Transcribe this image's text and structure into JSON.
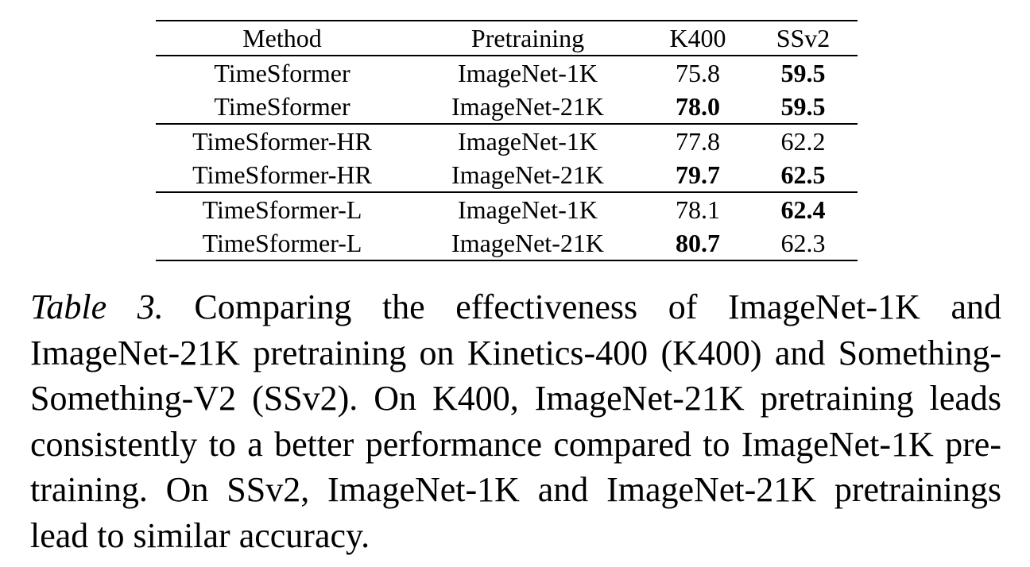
{
  "table": {
    "headers": {
      "method": "Method",
      "pretraining": "Pretraining",
      "k400": "K400",
      "ssv2": "SSv2"
    },
    "rows": [
      {
        "method": "TimeSformer",
        "pretraining": "ImageNet-1K",
        "k400": "75.8",
        "ssv2": "59.5",
        "k400_bold": false,
        "ssv2_bold": true
      },
      {
        "method": "TimeSformer",
        "pretraining": "ImageNet-21K",
        "k400": "78.0",
        "ssv2": "59.5",
        "k400_bold": true,
        "ssv2_bold": true
      },
      {
        "method": "TimeSformer-HR",
        "pretraining": "ImageNet-1K",
        "k400": "77.8",
        "ssv2": "62.2",
        "k400_bold": false,
        "ssv2_bold": false
      },
      {
        "method": "TimeSformer-HR",
        "pretraining": "ImageNet-21K",
        "k400": "79.7",
        "ssv2": "62.5",
        "k400_bold": true,
        "ssv2_bold": true
      },
      {
        "method": "TimeSformer-L",
        "pretraining": "ImageNet-1K",
        "k400": "78.1",
        "ssv2": "62.4",
        "k400_bold": false,
        "ssv2_bold": true
      },
      {
        "method": "TimeSformer-L",
        "pretraining": "ImageNet-21K",
        "k400": "80.7",
        "ssv2": "62.3",
        "k400_bold": true,
        "ssv2_bold": false
      }
    ]
  },
  "caption": {
    "label": "Table 3.",
    "text": "Comparing the effectiveness of ImageNet-1K and ImageNet-21K pretraining on Kinetics-400 (K400) and Something-Something-V2 (SSv2). On K400, ImageNet-21K pretraining leads consistently to a better performance compared to ImageNet-1K pre-training. On SSv2, ImageNet-1K and ImageNet-21K pretrainings lead to similar accuracy."
  }
}
